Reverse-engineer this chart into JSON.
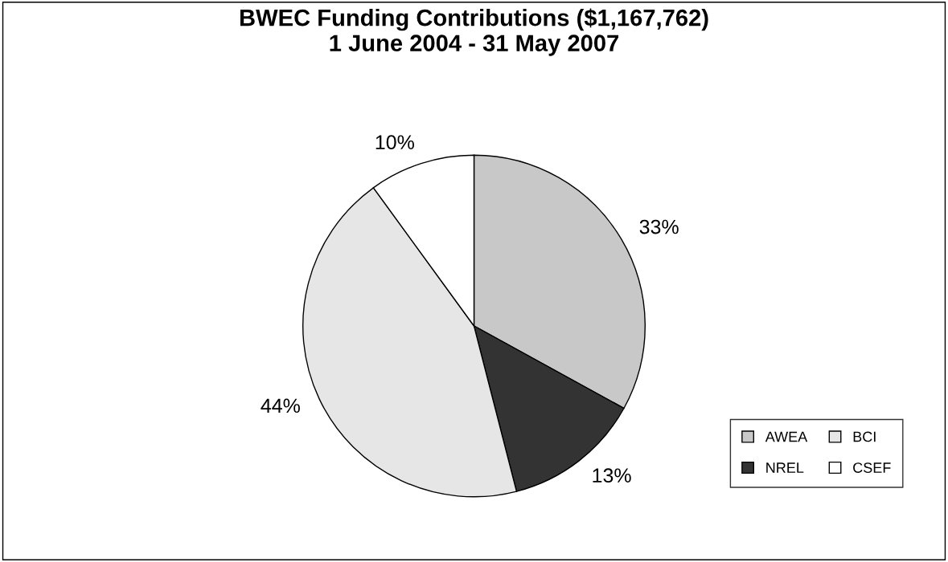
{
  "chart_data": {
    "type": "pie",
    "title": "BWEC Funding Contributions ($1,167,762)\n1 June 2004 - 31 May 2007",
    "categories": [
      "AWEA",
      "NREL",
      "BCI",
      "CSEF"
    ],
    "values": [
      33,
      13,
      44,
      10
    ],
    "colors": [
      "#c8c8c8",
      "#333333",
      "#e6e6e6",
      "#ffffff"
    ],
    "value_labels": [
      "33%",
      "13%",
      "44%",
      "10%"
    ],
    "legend": "bottom right"
  }
}
